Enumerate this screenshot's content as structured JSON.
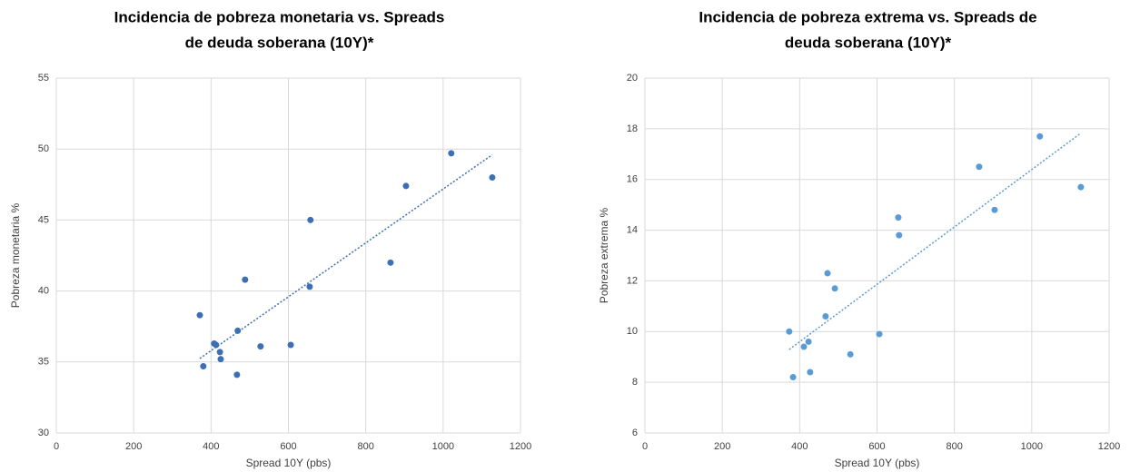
{
  "chart_data": [
    {
      "type": "scatter",
      "title": [
        "Incidencia de pobreza monetaria vs. Spreads",
        "de deuda soberana (10Y)*"
      ],
      "xlabel": "Spread  10Y (pbs)",
      "ylabel": "Pobreza monetaria %",
      "color": "#3d6fb6",
      "trendline": "linear",
      "grid": true,
      "xlim": [
        0,
        1200
      ],
      "xticks": [
        0,
        200,
        400,
        600,
        800,
        1000,
        1200
      ],
      "ylim": [
        30,
        55
      ],
      "yticks": [
        30,
        35,
        40,
        45,
        50,
        55
      ],
      "x": [
        371,
        380,
        408,
        413,
        423,
        425,
        469,
        467,
        488,
        528,
        606,
        655,
        657,
        864,
        904,
        1021,
        1127
      ],
      "values": [
        38.3,
        34.7,
        36.3,
        36.2,
        35.7,
        35.2,
        37.2,
        34.1,
        40.8,
        36.1,
        36.2,
        40.3,
        45.0,
        42.0,
        47.4,
        49.7,
        48.0
      ]
    },
    {
      "type": "scatter",
      "title": [
        "Incidencia de pobreza extrema vs. Spreads de",
        "deuda soberana (10Y)*"
      ],
      "xlabel": "Spread  10Y (pbs)",
      "ylabel": "Pobreza extrema %",
      "color": "#5b9bd5",
      "trendline": "linear",
      "grid": true,
      "xlim": [
        0,
        1200
      ],
      "xticks": [
        0,
        200,
        400,
        600,
        800,
        1000,
        1200
      ],
      "ylim": [
        6,
        20
      ],
      "yticks": [
        6,
        8,
        10,
        12,
        14,
        16,
        18,
        20
      ],
      "x": [
        373,
        383,
        411,
        423,
        427,
        467,
        472,
        491,
        531,
        606,
        655,
        657,
        864,
        904,
        1021,
        1127
      ],
      "values": [
        10.0,
        8.2,
        9.4,
        9.6,
        8.4,
        10.6,
        12.3,
        11.7,
        9.1,
        9.9,
        14.5,
        13.8,
        16.5,
        14.8,
        17.7,
        15.7
      ]
    }
  ]
}
